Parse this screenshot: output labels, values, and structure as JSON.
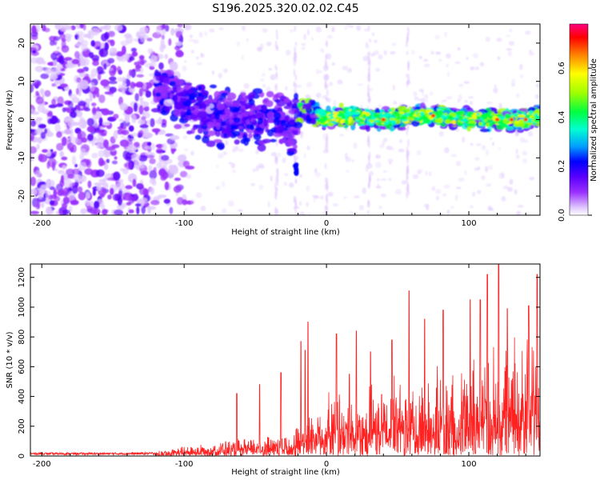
{
  "chart_data": [
    {
      "type": "heatmap",
      "title": "S196.2025.320.02.02.C45",
      "xlabel": "Height of straight line (km)",
      "ylabel": "Frequency (Hz)",
      "xlim": [
        -208,
        150
      ],
      "ylim": [
        -25,
        25
      ],
      "xticks": [
        "-200",
        "-100",
        "0",
        "100"
      ],
      "xtick_values": [
        -200,
        -100,
        0,
        100
      ],
      "yticks": [
        "-20",
        "-10",
        "0",
        "10",
        "20"
      ],
      "ytick_values": [
        -20,
        -10,
        0,
        10,
        20
      ],
      "colorbar": {
        "label": "Normalized spectral amplitude",
        "range": [
          0.0,
          0.78
        ],
        "ticks": [
          "0.0",
          "0.2",
          "0.4",
          "0.6"
        ],
        "tick_values": [
          0.0,
          0.2,
          0.4,
          0.6
        ],
        "colors": [
          "#ffffff",
          "#e0c8ff",
          "#9a30ff",
          "#5a00ff",
          "#0000ff",
          "#00a0ff",
          "#00ffd0",
          "#00ff40",
          "#a0ff00",
          "#ffff00",
          "#ff8000",
          "#ff0000",
          "#ff0080"
        ]
      },
      "description_series": [
        {
          "name": "ridge frequency (Hz)",
          "x": [
            -115,
            -100,
            -80,
            -60,
            -40,
            -25,
            -15,
            0,
            20,
            40,
            60,
            80,
            100,
            120,
            140,
            148
          ],
          "y": [
            8,
            4,
            1,
            0,
            0,
            -2,
            3,
            0,
            1,
            0,
            1,
            1,
            0,
            0,
            0,
            1
          ]
        }
      ]
    },
    {
      "type": "line",
      "title": "",
      "xlabel": "Height of straight line (km)",
      "ylabel": "SNR (10 * v/v)",
      "xlim": [
        -208,
        150
      ],
      "ylim": [
        0,
        1290
      ],
      "xticks": [
        "-200",
        "-100",
        "0",
        "100"
      ],
      "xtick_values": [
        -200,
        -100,
        0,
        100
      ],
      "yticks": [
        "0",
        "200",
        "400",
        "600",
        "800",
        "1000",
        "1200"
      ],
      "ytick_values": [
        0,
        200,
        400,
        600,
        800,
        1000,
        1200
      ],
      "series": [
        {
          "name": "SNR",
          "color": "#ff2020",
          "envelope_x": [
            -208,
            -150,
            -120,
            -100,
            -80,
            -60,
            -40,
            -25,
            -15,
            0,
            20,
            40,
            60,
            80,
            100,
            120,
            150
          ],
          "envelope_baseline": [
            15,
            15,
            18,
            40,
            60,
            70,
            90,
            100,
            180,
            250,
            250,
            300,
            320,
            350,
            400,
            450,
            500
          ],
          "peaks_x": [
            -63,
            -47,
            -32,
            -18,
            -15,
            -13,
            7,
            16,
            21,
            31,
            46,
            58,
            69,
            82,
            101,
            108,
            113,
            121,
            127,
            142,
            148
          ],
          "peaks_y": [
            420,
            480,
            560,
            770,
            710,
            900,
            820,
            550,
            840,
            700,
            780,
            1110,
            920,
            980,
            1050,
            1050,
            1220,
            1285,
            990,
            1010,
            1220
          ]
        }
      ]
    }
  ]
}
